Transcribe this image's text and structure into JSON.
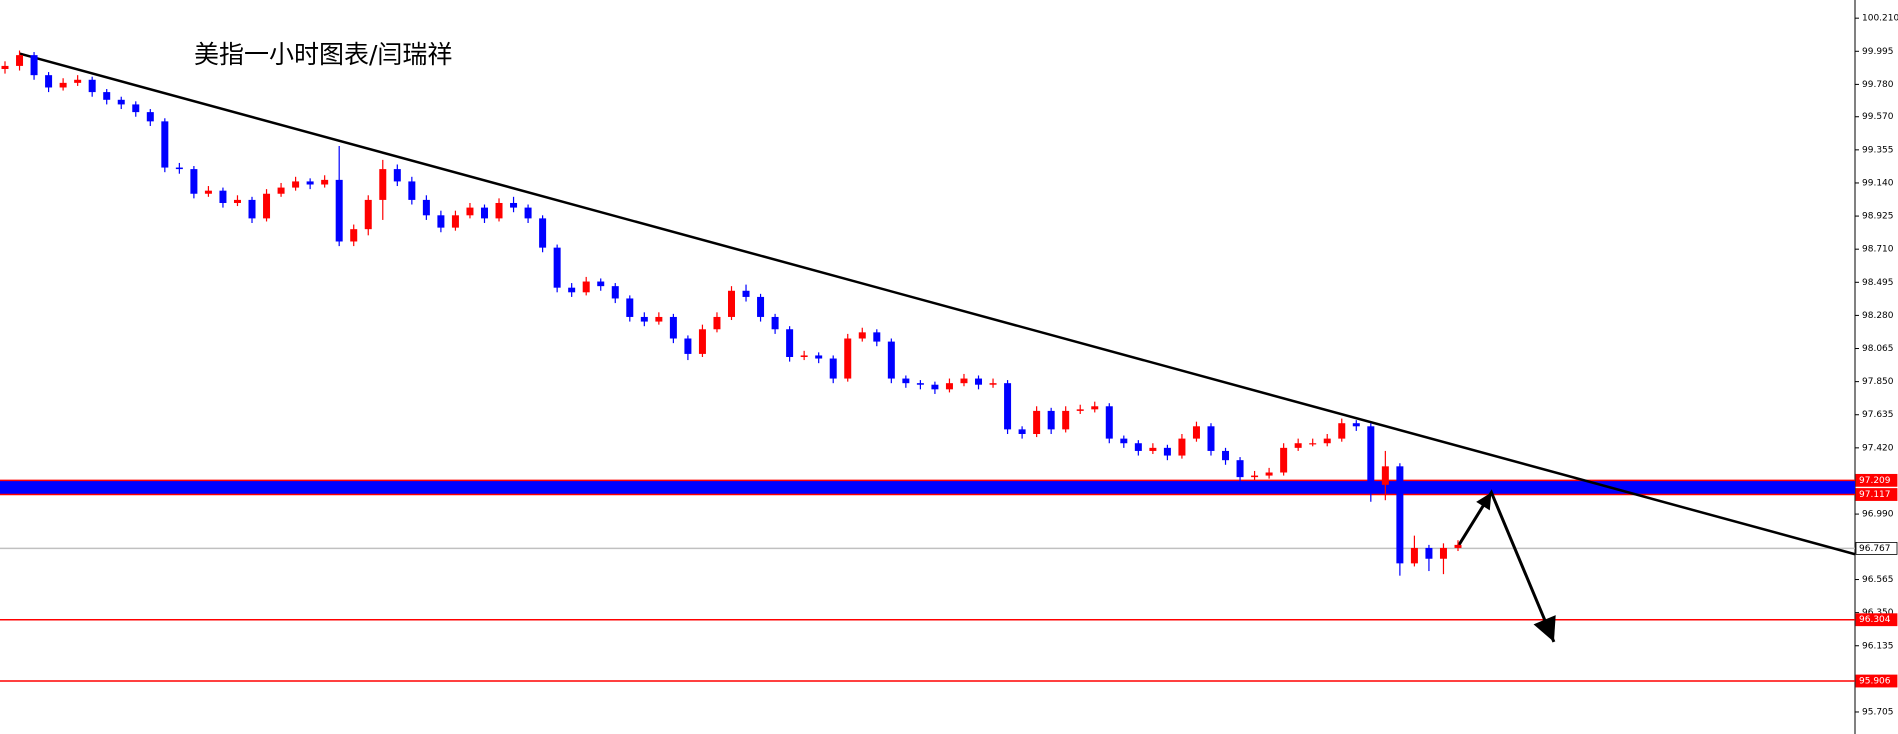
{
  "chart_data": {
    "type": "candlestick",
    "title": "美指一小时图表/闫瑞祥",
    "up_color": "#ff0000",
    "down_color": "#0000ff",
    "ylim": [
      95.562,
      100.328
    ],
    "yticks": [
      {
        "value": 100.21,
        "label": "100.210"
      },
      {
        "value": 99.995,
        "label": "99.995"
      },
      {
        "value": 99.78,
        "label": "99.780"
      },
      {
        "value": 99.57,
        "label": "99.570"
      },
      {
        "value": 99.355,
        "label": "99.355"
      },
      {
        "value": 99.14,
        "label": "99.140"
      },
      {
        "value": 98.925,
        "label": "98.925"
      },
      {
        "value": 98.71,
        "label": "98.710"
      },
      {
        "value": 98.495,
        "label": "98.495"
      },
      {
        "value": 98.28,
        "label": "98.280"
      },
      {
        "value": 98.065,
        "label": "98.065"
      },
      {
        "value": 97.85,
        "label": "97.850"
      },
      {
        "value": 97.635,
        "label": "97.635"
      },
      {
        "value": 97.42,
        "label": "97.420"
      },
      {
        "value": 96.99,
        "label": "96.990"
      },
      {
        "value": 96.565,
        "label": "96.565"
      },
      {
        "value": 96.35,
        "label": "96.350"
      },
      {
        "value": 96.135,
        "label": "96.135"
      },
      {
        "value": 95.705,
        "label": "95.705"
      }
    ],
    "zone": {
      "from": 97.209,
      "to": 97.117,
      "color": "#0000ff"
    },
    "levels": [
      {
        "value": 97.209,
        "label": "97.209",
        "color": "#ff0000"
      },
      {
        "value": 97.117,
        "label": "97.117",
        "color": "#ff0000"
      },
      {
        "value": 96.767,
        "label": "96.767",
        "color": "#c0c0c0"
      },
      {
        "value": 96.304,
        "label": "96.304",
        "color": "#ff0000"
      },
      {
        "value": 95.906,
        "label": "95.906",
        "color": "#ff0000"
      }
    ],
    "trendline": {
      "from_index": 1,
      "from_value": 99.98,
      "to_index": 127.3,
      "to_value": 96.73,
      "color": "#000000"
    },
    "arrow": {
      "points": [
        [
          100,
          96.78
        ],
        [
          102.3,
          97.13
        ],
        [
          106.6,
          96.16
        ]
      ],
      "color": "#000000"
    },
    "ohlc": [
      [
        99.88,
        99.93,
        99.85,
        99.9
      ],
      [
        99.9,
        100.0,
        99.87,
        99.97
      ],
      [
        99.97,
        99.99,
        99.81,
        99.84
      ],
      [
        99.84,
        99.86,
        99.73,
        99.76
      ],
      [
        99.76,
        99.82,
        99.74,
        99.79
      ],
      [
        99.79,
        99.84,
        99.77,
        99.81
      ],
      [
        99.81,
        99.83,
        99.7,
        99.73
      ],
      [
        99.73,
        99.75,
        99.65,
        99.68
      ],
      [
        99.68,
        99.7,
        99.62,
        99.65
      ],
      [
        99.65,
        99.67,
        99.57,
        99.6
      ],
      [
        99.6,
        99.62,
        99.51,
        99.54
      ],
      [
        99.54,
        99.56,
        99.21,
        99.24
      ],
      [
        99.24,
        99.27,
        99.2,
        99.23
      ],
      [
        99.23,
        99.25,
        99.04,
        99.07
      ],
      [
        99.07,
        99.12,
        99.05,
        99.09
      ],
      [
        99.09,
        99.11,
        98.98,
        99.01
      ],
      [
        99.01,
        99.06,
        98.99,
        99.03
      ],
      [
        99.03,
        99.05,
        98.88,
        98.91
      ],
      [
        98.91,
        99.1,
        98.89,
        99.07
      ],
      [
        99.07,
        99.14,
        99.05,
        99.11
      ],
      [
        99.11,
        99.18,
        99.09,
        99.15
      ],
      [
        99.15,
        99.17,
        99.1,
        99.13
      ],
      [
        99.13,
        99.19,
        99.11,
        99.16
      ],
      [
        99.16,
        99.38,
        98.73,
        98.76
      ],
      [
        98.76,
        98.87,
        98.73,
        98.84
      ],
      [
        98.84,
        99.06,
        98.8,
        99.03
      ],
      [
        99.03,
        99.29,
        98.9,
        99.23
      ],
      [
        99.23,
        99.26,
        99.12,
        99.15
      ],
      [
        99.15,
        99.18,
        99.0,
        99.03
      ],
      [
        99.03,
        99.06,
        98.9,
        98.93
      ],
      [
        98.93,
        98.96,
        98.82,
        98.85
      ],
      [
        98.85,
        98.96,
        98.83,
        98.93
      ],
      [
        98.93,
        99.01,
        98.91,
        98.98
      ],
      [
        98.98,
        99.0,
        98.88,
        98.91
      ],
      [
        98.91,
        99.04,
        98.89,
        99.01
      ],
      [
        99.01,
        99.05,
        98.95,
        98.98
      ],
      [
        98.98,
        99.0,
        98.88,
        98.91
      ],
      [
        98.91,
        98.93,
        98.69,
        98.72
      ],
      [
        98.72,
        98.74,
        98.43,
        98.46
      ],
      [
        98.46,
        98.49,
        98.4,
        98.43
      ],
      [
        98.43,
        98.53,
        98.41,
        98.5
      ],
      [
        98.5,
        98.52,
        98.44,
        98.47
      ],
      [
        98.47,
        98.49,
        98.36,
        98.39
      ],
      [
        98.39,
        98.41,
        98.24,
        98.27
      ],
      [
        98.27,
        98.3,
        98.21,
        98.24
      ],
      [
        98.24,
        98.3,
        98.22,
        98.27
      ],
      [
        98.27,
        98.29,
        98.1,
        98.13
      ],
      [
        98.13,
        98.15,
        97.99,
        98.03
      ],
      [
        98.03,
        98.22,
        98.01,
        98.19
      ],
      [
        98.19,
        98.3,
        98.17,
        98.27
      ],
      [
        98.27,
        98.47,
        98.25,
        98.44
      ],
      [
        98.44,
        98.48,
        98.37,
        98.4
      ],
      [
        98.4,
        98.42,
        98.24,
        98.27
      ],
      [
        98.27,
        98.29,
        98.16,
        98.19
      ],
      [
        98.19,
        98.21,
        97.98,
        98.01
      ],
      [
        98.01,
        98.05,
        97.99,
        98.02
      ],
      [
        98.02,
        98.04,
        97.97,
        98.0
      ],
      [
        98.0,
        98.02,
        97.84,
        97.87
      ],
      [
        97.87,
        98.16,
        97.85,
        98.13
      ],
      [
        98.13,
        98.2,
        98.11,
        98.17
      ],
      [
        98.17,
        98.19,
        98.08,
        98.11
      ],
      [
        98.11,
        98.13,
        97.84,
        97.87
      ],
      [
        97.87,
        97.89,
        97.81,
        97.84
      ],
      [
        97.84,
        97.86,
        97.8,
        97.83
      ],
      [
        97.83,
        97.85,
        97.77,
        97.8
      ],
      [
        97.8,
        97.87,
        97.78,
        97.84
      ],
      [
        97.84,
        97.9,
        97.82,
        97.87
      ],
      [
        97.87,
        97.89,
        97.8,
        97.83
      ],
      [
        97.83,
        97.87,
        97.81,
        97.84
      ],
      [
        97.84,
        97.86,
        97.51,
        97.54
      ],
      [
        97.54,
        97.56,
        97.48,
        97.51
      ],
      [
        97.51,
        97.69,
        97.49,
        97.66
      ],
      [
        97.66,
        97.68,
        97.51,
        97.54
      ],
      [
        97.54,
        97.69,
        97.52,
        97.66
      ],
      [
        97.66,
        97.7,
        97.64,
        97.67
      ],
      [
        97.67,
        97.72,
        97.65,
        97.69
      ],
      [
        97.69,
        97.71,
        97.45,
        97.48
      ],
      [
        97.48,
        97.5,
        97.42,
        97.45
      ],
      [
        97.45,
        97.47,
        97.37,
        97.4
      ],
      [
        97.4,
        97.45,
        97.38,
        97.42
      ],
      [
        97.42,
        97.44,
        97.34,
        97.37
      ],
      [
        97.37,
        97.51,
        97.35,
        97.48
      ],
      [
        97.48,
        97.59,
        97.46,
        97.56
      ],
      [
        97.56,
        97.58,
        97.37,
        97.4
      ],
      [
        97.4,
        97.42,
        97.31,
        97.34
      ],
      [
        97.34,
        97.36,
        97.2,
        97.23
      ],
      [
        97.23,
        97.27,
        97.21,
        97.24
      ],
      [
        97.24,
        97.29,
        97.22,
        97.26
      ],
      [
        97.26,
        97.45,
        97.24,
        97.42
      ],
      [
        97.42,
        97.48,
        97.4,
        97.45
      ],
      [
        97.45,
        97.48,
        97.43,
        97.45
      ],
      [
        97.45,
        97.51,
        97.43,
        97.48
      ],
      [
        97.48,
        97.61,
        97.46,
        97.58
      ],
      [
        97.58,
        97.6,
        97.53,
        97.56
      ],
      [
        97.56,
        97.58,
        97.07,
        97.18
      ],
      [
        97.18,
        97.4,
        97.08,
        97.3
      ],
      [
        97.3,
        97.32,
        96.59,
        96.67
      ],
      [
        96.67,
        96.85,
        96.65,
        96.77
      ],
      [
        96.77,
        96.79,
        96.62,
        96.7
      ],
      [
        96.7,
        96.8,
        96.6,
        96.77
      ],
      [
        96.77,
        96.82,
        96.75,
        96.79
      ]
    ]
  }
}
